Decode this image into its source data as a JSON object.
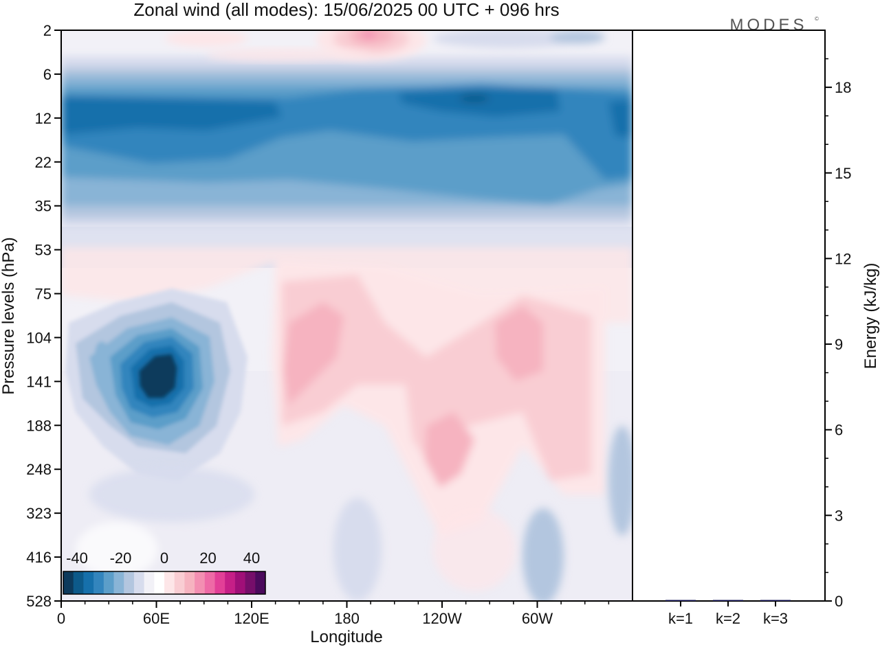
{
  "logo": "MODES",
  "logo_mark": "©",
  "chart_data": [
    {
      "type": "heatmap",
      "title": "Zonal wind (all modes):  15/06/2025  00 UTC  + 096 hrs",
      "xlabel": "Longitude",
      "ylabel": "Pressure levels (hPa)",
      "x_ticks": [
        "0",
        "60E",
        "120E",
        "180",
        "120W",
        "60W"
      ],
      "x_tick_lon": [
        0,
        60,
        120,
        180,
        240,
        300
      ],
      "x_range": [
        0,
        360
      ],
      "y_ticks": [
        "2",
        "6",
        "12",
        "22",
        "35",
        "53",
        "75",
        "104",
        "141",
        "188",
        "248",
        "323",
        "416",
        "528"
      ],
      "colorbar": {
        "labels": [
          "-40",
          "-20",
          "0",
          "20",
          "40"
        ],
        "colors": [
          "#0d3a5c",
          "#0d5a8a",
          "#1670ab",
          "#3385bd",
          "#5c9ec9",
          "#89b4d6",
          "#b3c6df",
          "#d7dced",
          "#f2f1f7",
          "#ffffff",
          "#fde6e8",
          "#f9cdd3",
          "#f6b3c0",
          "#f38fb2",
          "#ee6aa6",
          "#e23f97",
          "#c61f87",
          "#a00f78",
          "#760e6a",
          "#4b0a5c"
        ],
        "grid": false
      },
      "features": [
        {
          "lon": 0,
          "lat_level": 12,
          "value": -25
        },
        {
          "lon": 140,
          "lat_level": 12,
          "value": -15
        },
        {
          "lon": 250,
          "lat_level": 10,
          "value": -28
        },
        {
          "lon": 190,
          "lat_level": 2,
          "value": 20
        },
        {
          "lon": 60,
          "lat_level": 141,
          "value": -40
        },
        {
          "lon": 160,
          "lat_level": 141,
          "value": 15
        },
        {
          "lon": 240,
          "lat_level": 210,
          "value": 14
        },
        {
          "lon": 290,
          "lat_level": 120,
          "value": 14
        }
      ]
    },
    {
      "type": "bar",
      "categories": [
        "k=1",
        "k=2",
        "k=3"
      ],
      "values": [
        0.02,
        0.01,
        0.005
      ],
      "ylabel": "Energy (kJ/kg)",
      "y_ticks": [
        "0",
        "3",
        "6",
        "9",
        "12",
        "15",
        "18"
      ],
      "ylim": [
        0,
        20
      ]
    }
  ]
}
